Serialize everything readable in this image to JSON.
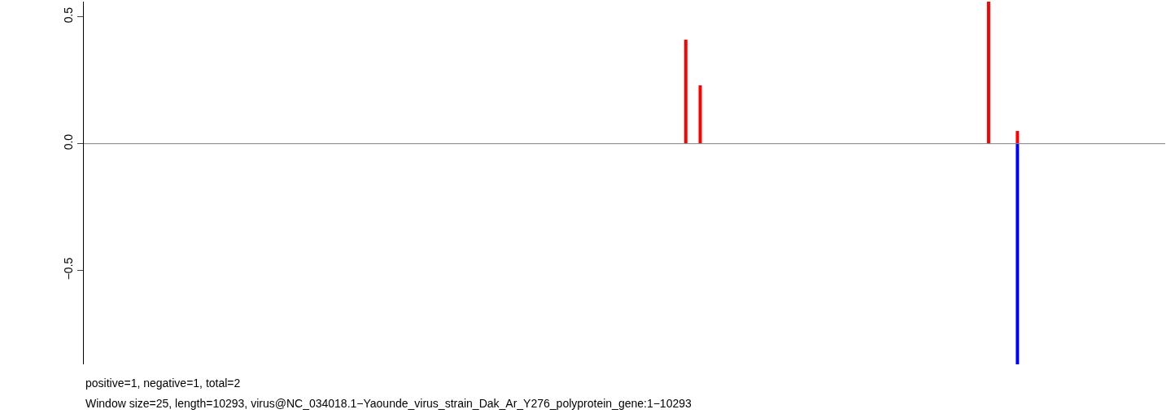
{
  "chart_data": {
    "type": "bar",
    "stacked": true,
    "categories": [
      null,
      null,
      null,
      null,
      null,
      null,
      null,
      null,
      null,
      null,
      null,
      null,
      null,
      null,
      null,
      null,
      null,
      null,
      null,
      null,
      null,
      null,
      null,
      null,
      null,
      null,
      null,
      null,
      null,
      null,
      null,
      null,
      null,
      null,
      null,
      null,
      null,
      null,
      null,
      null,
      null,
      null,
      null,
      null,
      null,
      null,
      null,
      null,
      null,
      null,
      null,
      null,
      null,
      null,
      null,
      null,
      null,
      null,
      null,
      null,
      null,
      null,
      null,
      null,
      null,
      null,
      null,
      null,
      null,
      null,
      null,
      null,
      null,
      null,
      null,
      null,
      null,
      null,
      null,
      null,
      null,
      null,
      null,
      null,
      null,
      null,
      null,
      null,
      null,
      null,
      null,
      null,
      null,
      null,
      null,
      null,
      null,
      null,
      null,
      null,
      null,
      null,
      null,
      null,
      null,
      null,
      null,
      null,
      null,
      null,
      null,
      null,
      null,
      null,
      null,
      null,
      null,
      null,
      null,
      null,
      null,
      null,
      null,
      null,
      null,
      null,
      null,
      null,
      null,
      null,
      null,
      null,
      null,
      null,
      null,
      null,
      null,
      null,
      null,
      null,
      null,
      null,
      null,
      null,
      null,
      null,
      null,
      null,
      null,
      null
    ],
    "series": [
      {
        "color": "#ff0000",
        "values": [
          null,
          null,
          null,
          null,
          null,
          null,
          null,
          null,
          null,
          null,
          null,
          null,
          null,
          null,
          null,
          null,
          null,
          null,
          null,
          null,
          null,
          null,
          null,
          null,
          null,
          null,
          null,
          null,
          null,
          null,
          null,
          null,
          null,
          null,
          null,
          null,
          null,
          null,
          null,
          null,
          null,
          null,
          null,
          null,
          null,
          null,
          null,
          null,
          null,
          null,
          null,
          null,
          null,
          null,
          null,
          null,
          null,
          null,
          null,
          null,
          null,
          null,
          null,
          null,
          null,
          null,
          null,
          null,
          null,
          null,
          null,
          null,
          null,
          null,
          null,
          null,
          null,
          null,
          null,
          null,
          null,
          null,
          null,
          0.41,
          null,
          0.23,
          null,
          null,
          null,
          null,
          null,
          null,
          null,
          null,
          null,
          null,
          null,
          null,
          null,
          null,
          null,
          null,
          null,
          null,
          null,
          null,
          null,
          null,
          null,
          null,
          null,
          null,
          null,
          null,
          null,
          null,
          null,
          null,
          null,
          null,
          null,
          null,
          null,
          null,
          null,
          0.56,
          null,
          null,
          null,
          0.05,
          null,
          null,
          null,
          null,
          null,
          null,
          null,
          null,
          null,
          null,
          null,
          null,
          null,
          null,
          null,
          null,
          null,
          null,
          null,
          null
        ]
      },
      {
        "color": "#0000ff",
        "values": [
          null,
          null,
          null,
          null,
          null,
          null,
          null,
          null,
          null,
          null,
          null,
          null,
          null,
          null,
          null,
          null,
          null,
          null,
          null,
          null,
          null,
          null,
          null,
          null,
          null,
          null,
          null,
          null,
          null,
          null,
          null,
          null,
          null,
          null,
          null,
          null,
          null,
          null,
          null,
          null,
          null,
          null,
          null,
          null,
          null,
          null,
          null,
          null,
          null,
          null,
          null,
          null,
          null,
          null,
          null,
          null,
          null,
          null,
          null,
          null,
          null,
          null,
          null,
          null,
          null,
          null,
          null,
          null,
          null,
          null,
          null,
          null,
          null,
          null,
          null,
          null,
          null,
          null,
          null,
          null,
          null,
          null,
          null,
          null,
          null,
          null,
          null,
          null,
          null,
          null,
          null,
          null,
          null,
          null,
          null,
          null,
          null,
          null,
          null,
          null,
          null,
          null,
          null,
          null,
          null,
          null,
          null,
          null,
          null,
          null,
          null,
          null,
          null,
          null,
          null,
          null,
          null,
          null,
          null,
          null,
          null,
          null,
          null,
          null,
          null,
          null,
          null,
          null,
          null,
          -0.87,
          null,
          null,
          null,
          null,
          null,
          null,
          null,
          null,
          null,
          null,
          null,
          null,
          null,
          null,
          null,
          null,
          null,
          null,
          null,
          null
        ]
      }
    ],
    "ylim": [
      -0.87,
      0.56
    ],
    "yticks": [
      {
        "value": -0.5,
        "label": "−0.5"
      },
      {
        "value": 0,
        "label": "0.0"
      },
      0.5
    ],
    "tick_labels": "y",
    "ref_lines": [
      {
        "axis": "y",
        "value": 0,
        "color": "#808080"
      }
    ],
    "annotations": [
      "positive=1, negative=1, total=2",
      "Window size=25, length=10293, virus@NC_034018.1−Yaounde_virus_strain_Dak_Ar_Y276_polyprotein_gene:1−10293"
    ]
  }
}
